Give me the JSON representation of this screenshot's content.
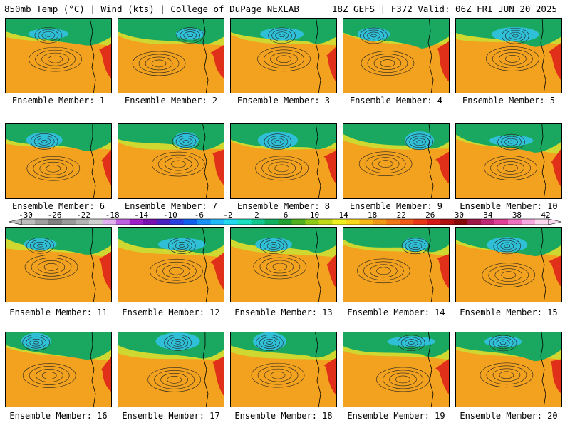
{
  "header": {
    "left": "850mb Temp (°C) | Wind (kts) | College of DuPage NEXLAB",
    "right": "18Z GEFS | F372 Valid: 06Z FRI JUN 20 2025"
  },
  "panels": [
    {
      "label": "Ensemble Member: 1"
    },
    {
      "label": "Ensemble Member: 2"
    },
    {
      "label": "Ensemble Member: 3"
    },
    {
      "label": "Ensemble Member: 4"
    },
    {
      "label": "Ensemble Member: 5"
    },
    {
      "label": "Ensemble Member: 6"
    },
    {
      "label": "Ensemble Member: 7"
    },
    {
      "label": "Ensemble Member: 8"
    },
    {
      "label": "Ensemble Member: 9"
    },
    {
      "label": "Ensemble Member: 10"
    },
    {
      "label": "Ensemble Member: 11"
    },
    {
      "label": "Ensemble Member: 12"
    },
    {
      "label": "Ensemble Member: 13"
    },
    {
      "label": "Ensemble Member: 14"
    },
    {
      "label": "Ensemble Member: 15"
    },
    {
      "label": "Ensemble Member: 16"
    },
    {
      "label": "Ensemble Member: 17"
    },
    {
      "label": "Ensemble Member: 18"
    },
    {
      "label": "Ensemble Member: 19"
    },
    {
      "label": "Ensemble Member: 20"
    }
  ],
  "colorbar": {
    "ticks": [
      "-30",
      "-26",
      "-22",
      "-18",
      "-14",
      "-10",
      "-6",
      "-2",
      "2",
      "6",
      "10",
      "14",
      "18",
      "22",
      "26",
      "30",
      "34",
      "38",
      "42"
    ],
    "colors": [
      "#bdbdbd",
      "#9e9e9e",
      "#808080",
      "#9a9a9a",
      "#b4b4b4",
      "#cfcfcf",
      "#e0b0ef",
      "#c060e0",
      "#a020c8",
      "#7a10b0",
      "#4b20c0",
      "#2a40e0",
      "#1060f0",
      "#1890f8",
      "#20b8f8",
      "#20d8f0",
      "#18e0c0",
      "#10c890",
      "#10b060",
      "#20a030",
      "#50b020",
      "#90c818",
      "#c0d818",
      "#f0f020",
      "#f8d818",
      "#f8b818",
      "#f09818",
      "#f07818",
      "#f05818",
      "#e83818",
      "#d81818",
      "#b01010",
      "#880808",
      "#a01848",
      "#c02878",
      "#e04098",
      "#f070c0",
      "#f8a8e0",
      "#fcd8f0"
    ]
  },
  "colors": {
    "cold": "#2fc0d8",
    "cool": "#1aa860",
    "mild": "#cfd830",
    "warm": "#f3a21f",
    "hot": "#e0301a",
    "contour": "#202020",
    "coast": "#000000"
  }
}
